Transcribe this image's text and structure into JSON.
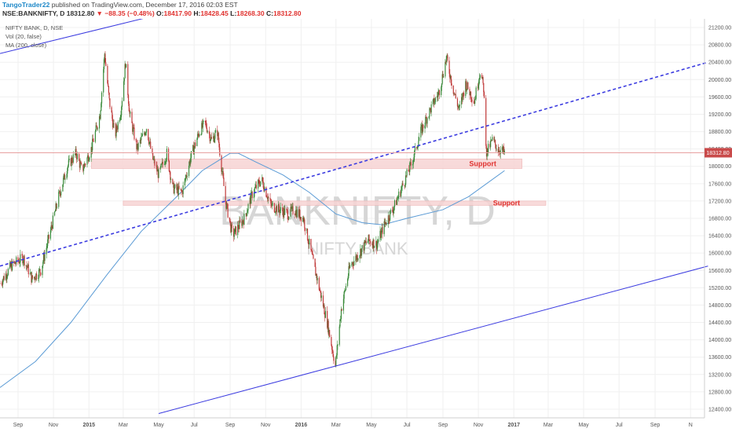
{
  "header": {
    "author": "TangoTrader22",
    "published_text": "published on TradingView.com, December 17, 2016 02:03 EST",
    "symbol_line": "NSE:BANKNIFTY, D",
    "last": "18312.80",
    "change_arrow": "▼",
    "change": "−88.35 (−0.48%)",
    "open_label": "O:",
    "open": "18417.90",
    "high_label": "H:",
    "high": "18428.45",
    "low_label": "L:",
    "low": "18268.30",
    "close_label": "C:",
    "close": "18312.80"
  },
  "legend": {
    "title": "NIFTY BANK, D, NSE",
    "vol": "Vol (20, false)",
    "ma": "MA (200, close)"
  },
  "watermark": {
    "symbol": "BANKNIFTY, D",
    "name": "NIFTY BANK"
  },
  "price_label": "18312.80",
  "colors": {
    "up": "#3a8a3a",
    "down": "#c03a3a",
    "ma": "#5b9bd5",
    "trend": "#3b3be0",
    "support_fill": "#f7d4d4",
    "support_text": "#e0322f",
    "price_line": "#e8a0a0"
  },
  "chart_data": {
    "type": "candlestick",
    "title": "NIFTY BANK, D, NSE",
    "ylim": [
      12200,
      21400
    ],
    "y_ticks": [
      12400,
      12800,
      13200,
      13600,
      14000,
      14400,
      14800,
      15200,
      15600,
      16000,
      16400,
      16800,
      17200,
      17600,
      18000,
      18400,
      18800,
      19200,
      19600,
      20000,
      20400,
      20800,
      21200
    ],
    "x_ticks": [
      "Sep",
      "Nov",
      "2015",
      "Mar",
      "May",
      "Jul",
      "Sep",
      "Nov",
      "2016",
      "Mar",
      "May",
      "Jul",
      "Sep",
      "Nov",
      "2017",
      "Mar",
      "May",
      "Jul",
      "Sep",
      "N"
    ],
    "x_tick_dates": [
      "2014-09-01",
      "2014-11-01",
      "2015-01-01",
      "2015-03-01",
      "2015-05-01",
      "2015-07-01",
      "2015-09-01",
      "2015-11-01",
      "2016-01-01",
      "2016-03-01",
      "2016-05-01",
      "2016-07-01",
      "2016-09-01",
      "2016-11-01",
      "2017-01-01",
      "2017-03-01",
      "2017-05-01",
      "2017-07-01",
      "2017-09-01",
      "2017-11-01"
    ],
    "price_path": [
      [
        "2014-08-01",
        15300
      ],
      [
        "2014-08-20",
        15700
      ],
      [
        "2014-09-10",
        15900
      ],
      [
        "2014-09-25",
        15400
      ],
      [
        "2014-10-10",
        15600
      ],
      [
        "2014-10-25",
        16400
      ],
      [
        "2014-11-10",
        17300
      ],
      [
        "2014-11-25",
        18000
      ],
      [
        "2014-12-10",
        18300
      ],
      [
        "2014-12-20",
        17900
      ],
      [
        "2015-01-05",
        18400
      ],
      [
        "2015-01-20",
        19200
      ],
      [
        "2015-01-28",
        20600
      ],
      [
        "2015-02-05",
        19500
      ],
      [
        "2015-02-15",
        18700
      ],
      [
        "2015-02-25",
        19300
      ],
      [
        "2015-03-05",
        20400
      ],
      [
        "2015-03-12",
        19200
      ],
      [
        "2015-03-25",
        18400
      ],
      [
        "2015-04-10",
        18900
      ],
      [
        "2015-04-20",
        18200
      ],
      [
        "2015-05-01",
        17800
      ],
      [
        "2015-05-15",
        18300
      ],
      [
        "2015-05-25",
        17500
      ],
      [
        "2015-06-10",
        17400
      ],
      [
        "2015-06-25",
        18200
      ],
      [
        "2015-07-10",
        18800
      ],
      [
        "2015-07-20",
        19000
      ],
      [
        "2015-07-31",
        18600
      ],
      [
        "2015-08-10",
        18800
      ],
      [
        "2015-08-24",
        17200
      ],
      [
        "2015-09-05",
        16400
      ],
      [
        "2015-09-15",
        16600
      ],
      [
        "2015-09-25",
        16800
      ],
      [
        "2015-10-10",
        17400
      ],
      [
        "2015-10-25",
        17700
      ],
      [
        "2015-11-10",
        17100
      ],
      [
        "2015-11-25",
        17000
      ],
      [
        "2015-12-10",
        16900
      ],
      [
        "2015-12-20",
        17000
      ],
      [
        "2016-01-05",
        16800
      ],
      [
        "2016-01-20",
        15900
      ],
      [
        "2016-02-01",
        15200
      ],
      [
        "2016-02-15",
        14400
      ],
      [
        "2016-02-29",
        13400
      ],
      [
        "2016-03-10",
        14700
      ],
      [
        "2016-03-25",
        15700
      ],
      [
        "2016-04-10",
        16000
      ],
      [
        "2016-04-25",
        16300
      ],
      [
        "2016-05-10",
        16200
      ],
      [
        "2016-05-25",
        16700
      ],
      [
        "2016-06-10",
        17100
      ],
      [
        "2016-06-25",
        17600
      ],
      [
        "2016-07-10",
        18100
      ],
      [
        "2016-07-25",
        18800
      ],
      [
        "2016-08-10",
        19300
      ],
      [
        "2016-08-25",
        19700
      ],
      [
        "2016-09-07",
        20500
      ],
      [
        "2016-09-20",
        19700
      ],
      [
        "2016-09-29",
        19300
      ],
      [
        "2016-10-10",
        19900
      ],
      [
        "2016-10-25",
        19500
      ],
      [
        "2016-11-04",
        20200
      ],
      [
        "2016-11-10",
        19800
      ],
      [
        "2016-11-15",
        18300
      ],
      [
        "2016-11-25",
        18600
      ],
      [
        "2016-12-05",
        18400
      ],
      [
        "2016-12-16",
        18312
      ]
    ],
    "ma200": [
      [
        "2014-08-01",
        12900
      ],
      [
        "2014-10-01",
        13500
      ],
      [
        "2014-12-01",
        14400
      ],
      [
        "2015-02-01",
        15500
      ],
      [
        "2015-04-01",
        16500
      ],
      [
        "2015-06-01",
        17300
      ],
      [
        "2015-07-15",
        17900
      ],
      [
        "2015-09-01",
        18300
      ],
      [
        "2015-09-15",
        18300
      ],
      [
        "2015-10-15",
        18100
      ],
      [
        "2015-12-01",
        17800
      ],
      [
        "2016-01-15",
        17400
      ],
      [
        "2016-03-01",
        16900
      ],
      [
        "2016-04-15",
        16700
      ],
      [
        "2016-05-20",
        16650
      ],
      [
        "2016-07-01",
        16800
      ],
      [
        "2016-09-01",
        17000
      ],
      [
        "2016-10-15",
        17300
      ],
      [
        "2016-12-16",
        17900
      ]
    ],
    "upper_channel": [
      [
        "2014-08-01",
        20600
      ],
      [
        "2015-09-01",
        21900
      ]
    ],
    "lower_channel": [
      [
        "2015-05-01",
        12300
      ],
      [
        "2017-12-01",
        15700
      ]
    ],
    "dashed_trendline": [
      [
        "2014-08-01",
        15700
      ],
      [
        "2017-12-01",
        20400
      ]
    ],
    "support_zones": [
      {
        "label": "Support",
        "y_low": 17950,
        "y_high": 18170,
        "x_start": "2015-01-05",
        "x_end": "2017-01-15"
      },
      {
        "label": "Support",
        "y_low": 17100,
        "y_high": 17200,
        "x_start": "2015-03-01",
        "x_end": "2017-02-25"
      }
    ],
    "last_price": 18312.8
  }
}
